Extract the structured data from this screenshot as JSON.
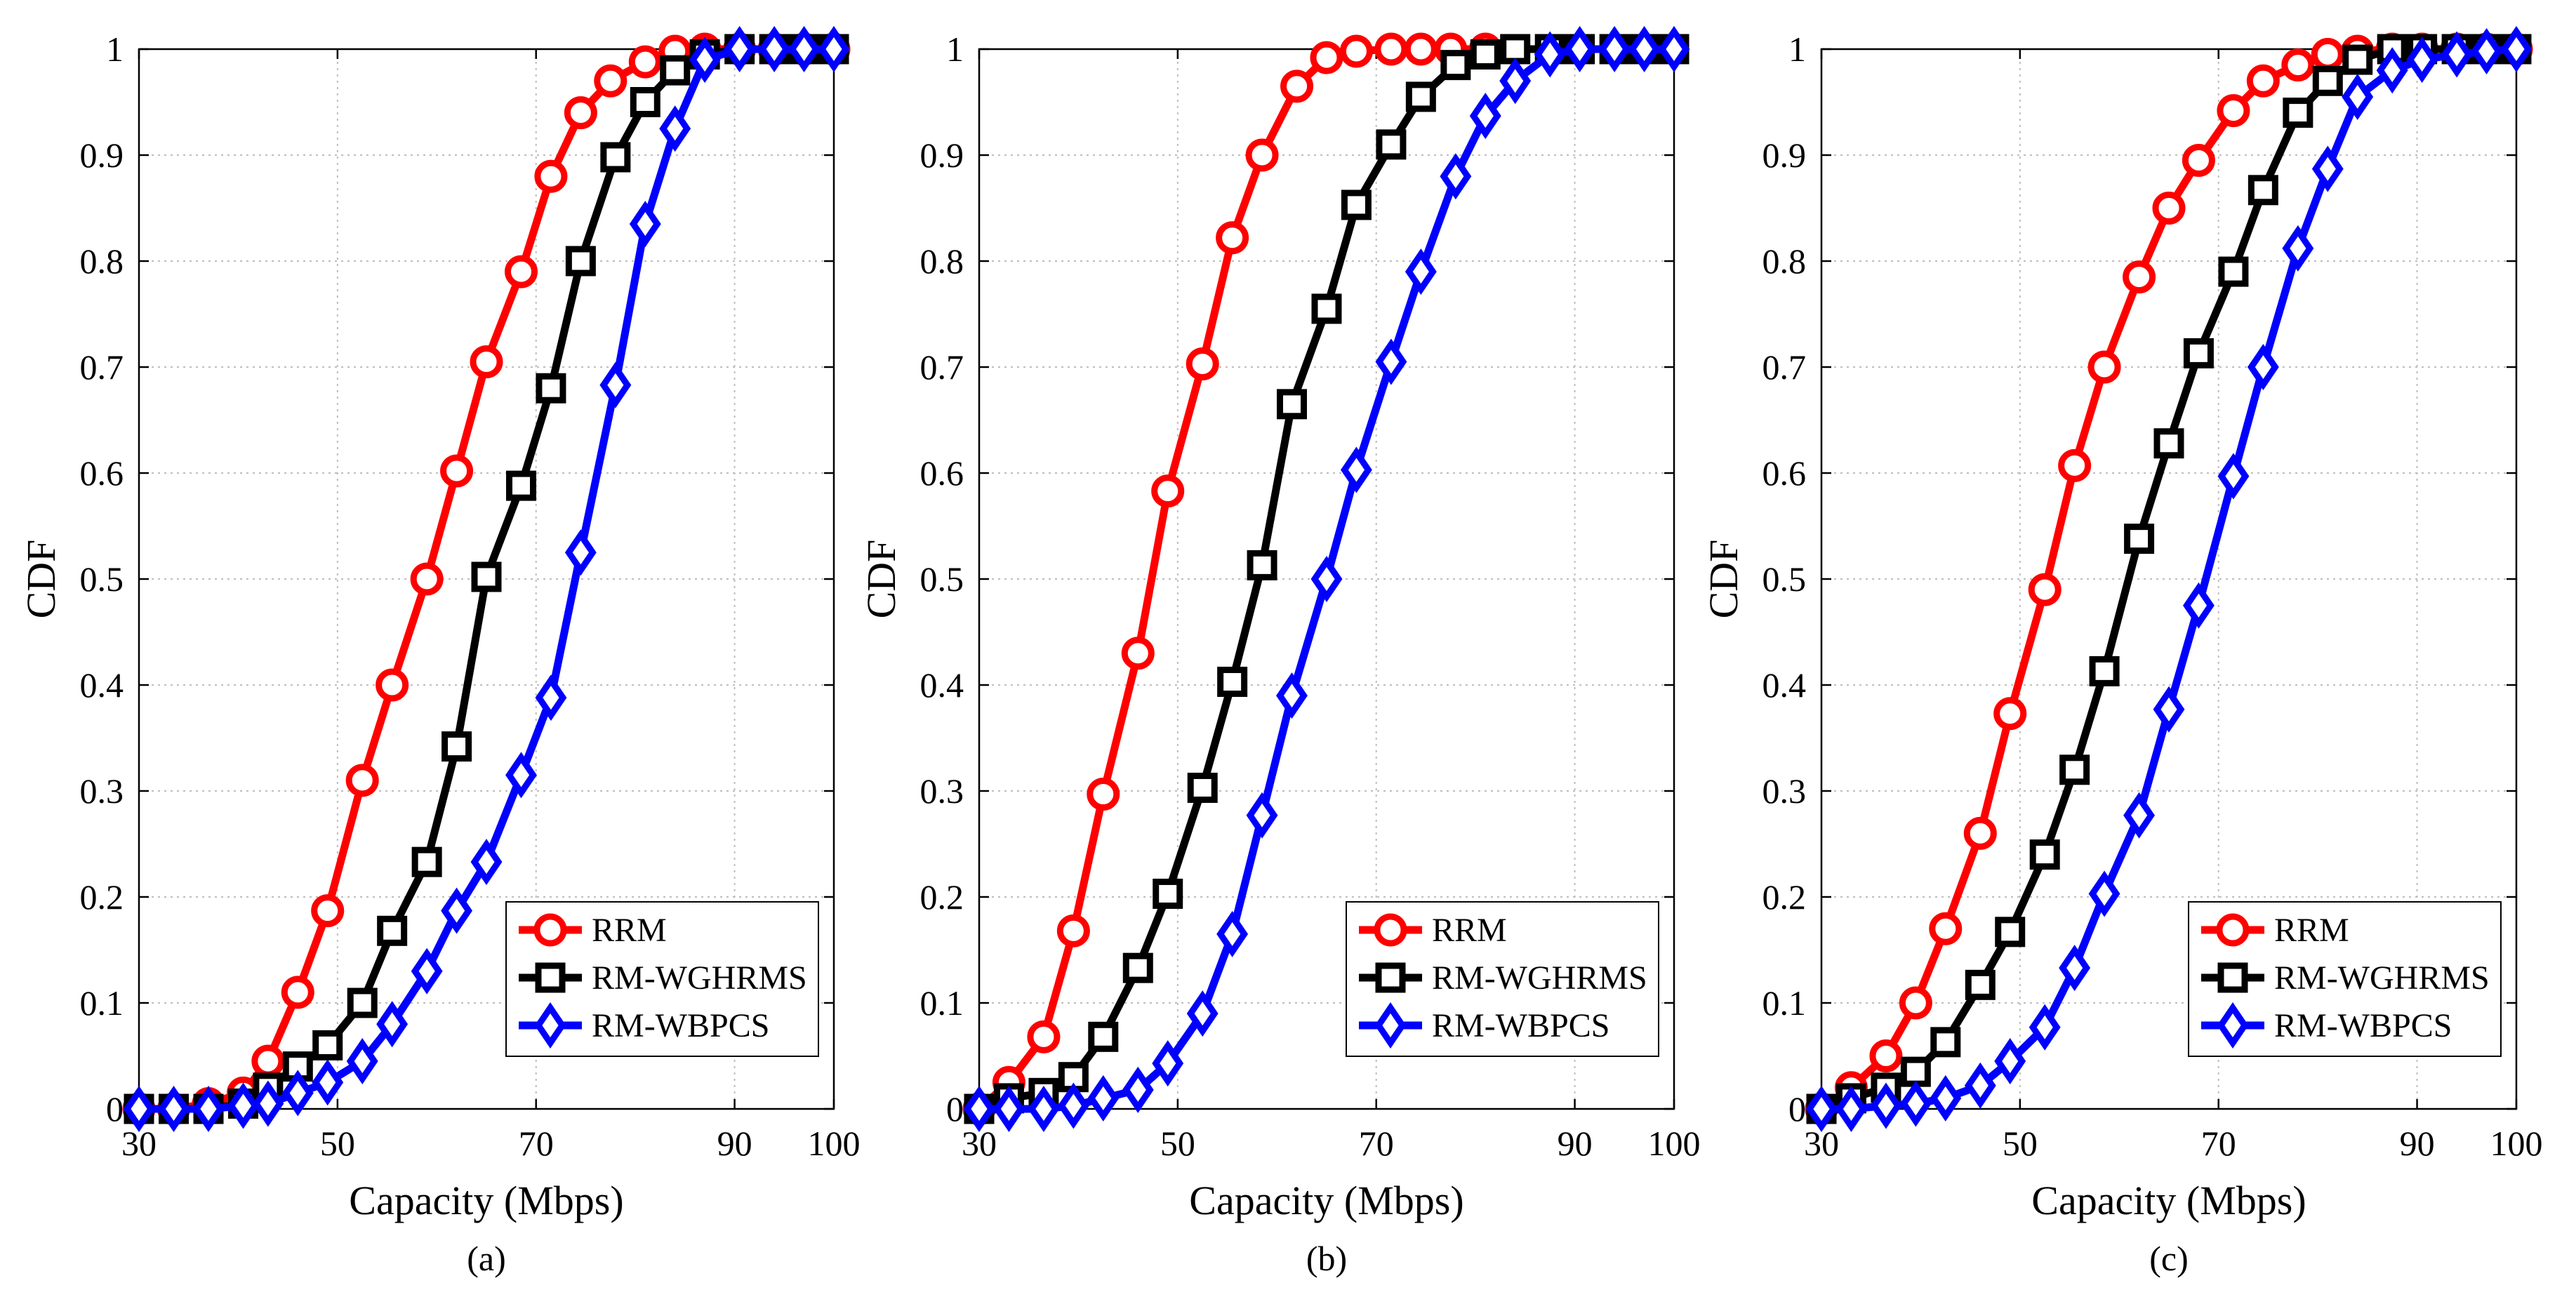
{
  "chart_data": [
    {
      "type": "line",
      "panel_label": "(a)",
      "xlabel": "Capacity (Mbps)",
      "ylabel": "CDF",
      "xlim": [
        30,
        100
      ],
      "ylim": [
        0,
        1
      ],
      "xticks": [
        30,
        50,
        70,
        90,
        100
      ],
      "yticks": [
        0,
        0.1,
        0.2,
        0.3,
        0.4,
        0.5,
        0.6,
        0.7,
        0.8,
        0.9,
        1
      ],
      "yticklabels": [
        "0",
        "0.1",
        "0.2",
        "0.3",
        "0.4",
        "0.5",
        "0.6",
        "0.7",
        "0.8",
        "0.9",
        "1"
      ],
      "grid": true,
      "legend_position": "bottom-right",
      "series": [
        {
          "name": "RRM",
          "color": "#ff0000",
          "marker": "circle",
          "x": [
            30,
            33.5,
            37,
            40.5,
            43,
            46,
            49,
            52.5,
            55.5,
            59,
            62,
            65,
            68.5,
            71.5,
            74.5,
            77.5,
            81,
            84,
            87,
            90.5,
            94,
            97,
            100
          ],
          "y": [
            0,
            0,
            0.005,
            0.015,
            0.045,
            0.11,
            0.187,
            0.31,
            0.4,
            0.5,
            0.602,
            0.705,
            0.79,
            0.88,
            0.94,
            0.97,
            0.988,
            0.998,
            1,
            1,
            1,
            1,
            1
          ]
        },
        {
          "name": "RM-WGHRMS",
          "color": "#000000",
          "marker": "square",
          "x": [
            30,
            33.5,
            37,
            40.5,
            43,
            46,
            49,
            52.5,
            55.5,
            59,
            62,
            65,
            68.5,
            71.5,
            74.5,
            78,
            81,
            84,
            87,
            90.5,
            94,
            97,
            100
          ],
          "y": [
            0,
            0,
            0,
            0.005,
            0.02,
            0.04,
            0.06,
            0.1,
            0.168,
            0.233,
            0.342,
            0.502,
            0.588,
            0.68,
            0.8,
            0.898,
            0.95,
            0.98,
            0.995,
            1,
            1,
            1,
            1
          ]
        },
        {
          "name": "RM-WBPCS",
          "color": "#0000ff",
          "marker": "diamond",
          "x": [
            30,
            33.5,
            37,
            40.5,
            43,
            46,
            49,
            52.5,
            55.5,
            59,
            62,
            65,
            68.5,
            71.5,
            74.5,
            78,
            81,
            84,
            87,
            90.5,
            94,
            97,
            100
          ],
          "y": [
            0,
            0,
            0,
            0.003,
            0.005,
            0.015,
            0.025,
            0.045,
            0.08,
            0.13,
            0.187,
            0.233,
            0.315,
            0.388,
            0.525,
            0.683,
            0.835,
            0.925,
            0.99,
            1,
            1,
            1,
            1
          ]
        }
      ]
    },
    {
      "type": "line",
      "panel_label": "(b)",
      "xlabel": "Capacity (Mbps)",
      "ylabel": "CDF",
      "xlim": [
        30,
        100
      ],
      "ylim": [
        0,
        1
      ],
      "xticks": [
        30,
        50,
        70,
        90,
        100
      ],
      "yticks": [
        0,
        0.1,
        0.2,
        0.3,
        0.4,
        0.5,
        0.6,
        0.7,
        0.8,
        0.9,
        1
      ],
      "yticklabels": [
        "0",
        "0.1",
        "0.2",
        "0.3",
        "0.4",
        "0.5",
        "0.6",
        "0.7",
        "0.8",
        "0.9",
        "1"
      ],
      "grid": true,
      "legend_position": "bottom-right",
      "series": [
        {
          "name": "RRM",
          "color": "#ff0000",
          "marker": "circle",
          "x": [
            30,
            33,
            36.5,
            39.5,
            42.5,
            46,
            49,
            52.5,
            55.5,
            58.5,
            62,
            65,
            68,
            71.5,
            74.5,
            77.5,
            81
          ],
          "y": [
            0,
            0.025,
            0.068,
            0.168,
            0.297,
            0.43,
            0.583,
            0.703,
            0.822,
            0.9,
            0.965,
            0.992,
            0.998,
            1,
            1,
            1,
            1
          ]
        },
        {
          "name": "RM-WGHRMS",
          "color": "#000000",
          "marker": "square",
          "x": [
            30,
            33,
            36.5,
            39.5,
            42.5,
            46,
            49,
            52.5,
            55.5,
            58.5,
            61.5,
            65,
            68,
            71.5,
            74.5,
            78,
            81,
            84,
            87.5,
            90.5,
            94,
            97,
            100
          ],
          "y": [
            0,
            0.01,
            0.015,
            0.03,
            0.068,
            0.133,
            0.203,
            0.303,
            0.403,
            0.513,
            0.665,
            0.755,
            0.853,
            0.91,
            0.955,
            0.985,
            0.995,
            1,
            1,
            1,
            1,
            1,
            1
          ]
        },
        {
          "name": "RM-WBPCS",
          "color": "#0000ff",
          "marker": "diamond",
          "x": [
            30,
            33,
            36.5,
            39.5,
            42.5,
            46,
            49,
            52.5,
            55.5,
            58.5,
            61.5,
            65,
            68,
            71.5,
            74.5,
            78,
            81,
            84,
            87.5,
            90.5,
            94,
            97,
            100
          ],
          "y": [
            0,
            0,
            0,
            0.003,
            0.01,
            0.018,
            0.043,
            0.09,
            0.165,
            0.277,
            0.39,
            0.5,
            0.603,
            0.705,
            0.79,
            0.88,
            0.937,
            0.97,
            0.995,
            1,
            1,
            1,
            1
          ]
        }
      ]
    },
    {
      "type": "line",
      "panel_label": "(c)",
      "xlabel": "Capacity (Mbps)",
      "ylabel": "CDF",
      "xlim": [
        30,
        100
      ],
      "ylim": [
        0,
        1
      ],
      "xticks": [
        30,
        50,
        70,
        90,
        100
      ],
      "yticks": [
        0,
        0.1,
        0.2,
        0.3,
        0.4,
        0.5,
        0.6,
        0.7,
        0.8,
        0.9,
        1
      ],
      "yticklabels": [
        "0",
        "0.1",
        "0.2",
        "0.3",
        "0.4",
        "0.5",
        "0.6",
        "0.7",
        "0.8",
        "0.9",
        "1"
      ],
      "grid": true,
      "legend_position": "bottom-right",
      "series": [
        {
          "name": "RRM",
          "color": "#ff0000",
          "marker": "circle",
          "x": [
            30,
            33,
            36.5,
            39.5,
            42.5,
            46,
            49,
            52.5,
            55.5,
            58.5,
            62,
            65,
            68,
            71.5,
            74.5,
            78,
            81,
            84,
            87.5,
            90.5,
            94,
            97,
            100
          ],
          "y": [
            0,
            0.02,
            0.05,
            0.1,
            0.17,
            0.26,
            0.373,
            0.49,
            0.607,
            0.7,
            0.785,
            0.85,
            0.895,
            0.942,
            0.97,
            0.985,
            0.995,
            0.998,
            1,
            1,
            1,
            1,
            1
          ]
        },
        {
          "name": "RM-WGHRMS",
          "color": "#000000",
          "marker": "square",
          "x": [
            30,
            33,
            36.5,
            39.5,
            42.5,
            46,
            49,
            52.5,
            55.5,
            58.5,
            62,
            65,
            68,
            71.5,
            74.5,
            78,
            81,
            84,
            87.5,
            90.5,
            94,
            97,
            100
          ],
          "y": [
            0,
            0.01,
            0.02,
            0.035,
            0.063,
            0.117,
            0.167,
            0.24,
            0.32,
            0.413,
            0.538,
            0.628,
            0.713,
            0.79,
            0.867,
            0.94,
            0.97,
            0.99,
            1,
            1,
            1,
            1,
            1
          ]
        },
        {
          "name": "RM-WBPCS",
          "color": "#0000ff",
          "marker": "diamond",
          "x": [
            30,
            33,
            36.5,
            39.5,
            42.5,
            46,
            49,
            52.5,
            55.5,
            58.5,
            62,
            65,
            68,
            71.5,
            74.5,
            78,
            81,
            84,
            87.5,
            90.5,
            94,
            97,
            100
          ],
          "y": [
            0,
            0,
            0.003,
            0.005,
            0.01,
            0.022,
            0.045,
            0.077,
            0.133,
            0.203,
            0.277,
            0.377,
            0.475,
            0.597,
            0.7,
            0.812,
            0.887,
            0.955,
            0.98,
            0.99,
            0.995,
            0.998,
            1
          ]
        }
      ]
    }
  ]
}
